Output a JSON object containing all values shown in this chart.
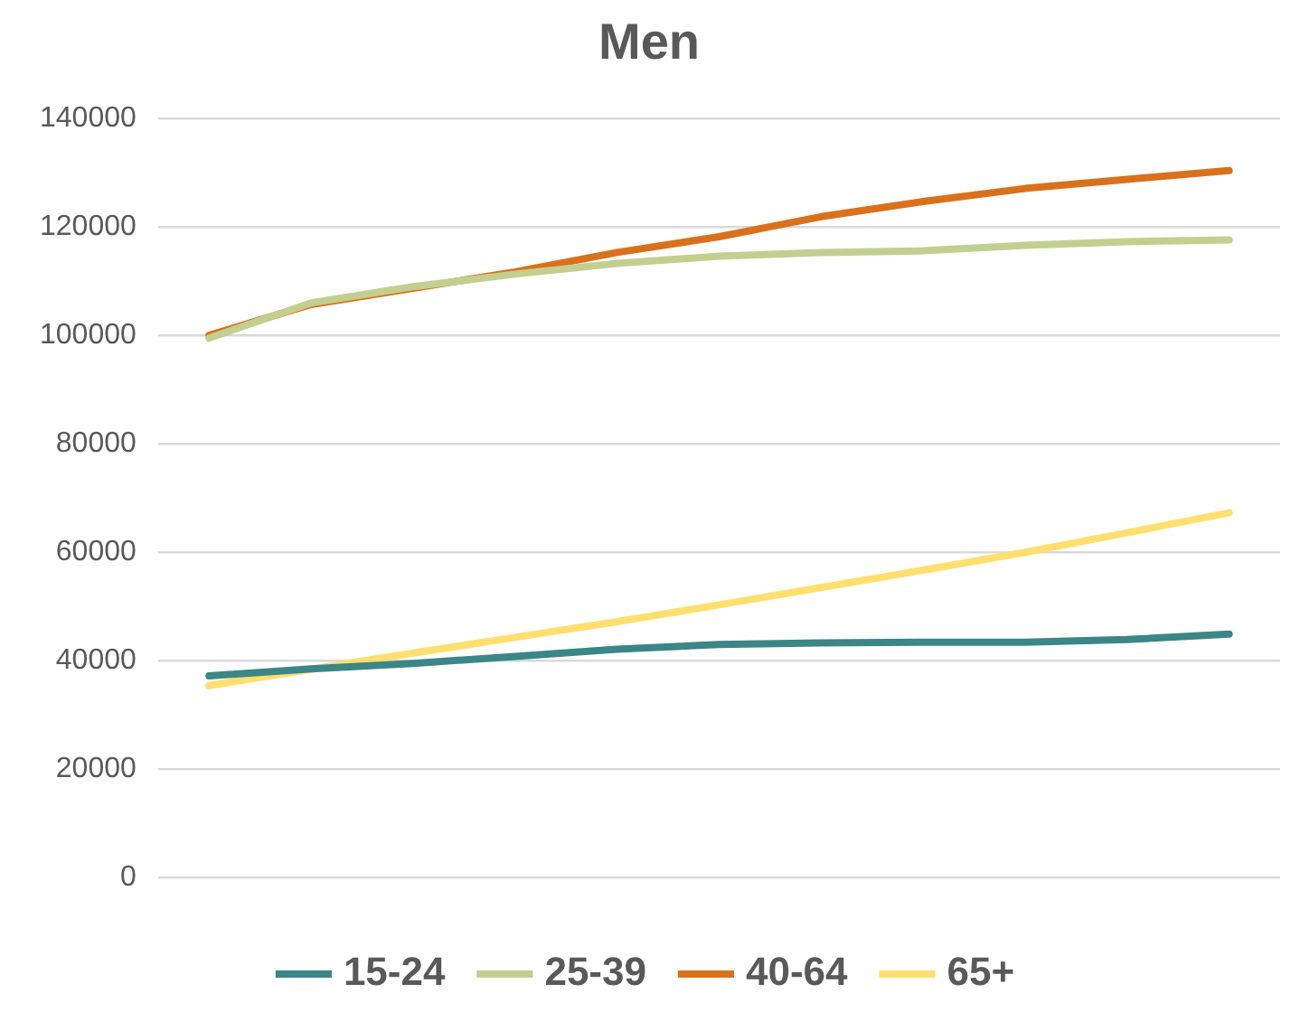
{
  "chart_data": {
    "type": "line",
    "title": "Men",
    "categories": [
      null,
      null,
      null,
      null,
      null,
      null,
      null,
      null,
      null,
      null,
      null
    ],
    "series": [
      {
        "name": "15-24",
        "color": "#3b8686",
        "values": [
          37200,
          38500,
          39500,
          40800,
          42100,
          43000,
          43300,
          43400,
          43400,
          43900,
          44900
        ]
      },
      {
        "name": "25-39",
        "color": "#c3cf8f",
        "values": [
          99500,
          106000,
          109000,
          111300,
          113300,
          114600,
          115300,
          115600,
          116600,
          117300,
          117600
        ]
      },
      {
        "name": "40-64",
        "color": "#d9711c",
        "values": [
          100000,
          105700,
          108700,
          111700,
          115300,
          118200,
          121900,
          124700,
          127100,
          128800,
          130400
        ]
      },
      {
        "name": "65+",
        "color": "#ffdf6f",
        "values": [
          35400,
          38400,
          41400,
          44300,
          47200,
          50300,
          53500,
          56700,
          60000,
          63600,
          67300
        ]
      }
    ],
    "ylim": [
      0,
      140000
    ],
    "yticks": [
      0,
      20000,
      40000,
      60000,
      80000,
      100000,
      120000,
      140000
    ],
    "grid": "y",
    "legend": "bottom",
    "marker": "none",
    "line_style": "solid"
  }
}
